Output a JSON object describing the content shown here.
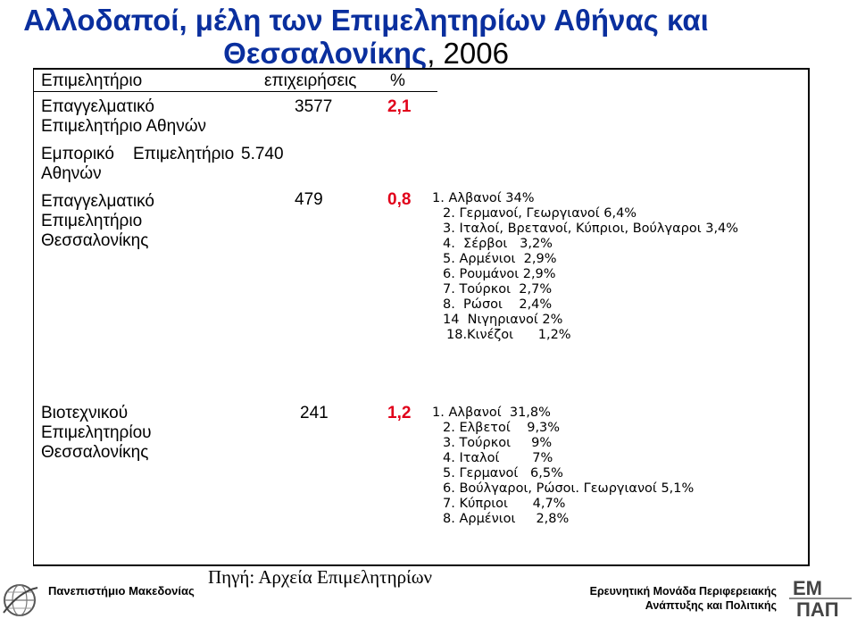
{
  "title": {
    "main": "Αλλοδαποί, μέλη των Επιμελητηρίων Αθήνας και Θεσσαλονίκης",
    "sep": ", ",
    "year": "2006"
  },
  "table": {
    "headers": [
      "Επιμελητήριο",
      "επιχειρήσεις",
      "%"
    ],
    "rows": [
      {
        "name_lines": [
          "Επαγγελματικό",
          "Επιμελητήριο Αθηνών"
        ],
        "count": "3577",
        "pct": "2,1",
        "notes": []
      },
      {
        "name_lines": [
          "Εμπορικό    Επιμελητήριο",
          "Αθηνών"
        ],
        "count": "5.740",
        "pct": "",
        "notes": []
      },
      {
        "name_lines": [
          "Επαγγελματικό",
          "Επιμελητήριο",
          "Θεσσαλονίκης"
        ],
        "count": "479",
        "pct": "0,8",
        "notes": [
          "1. Αλβανοί 34%",
          "2. Γερμανοί, Γεωργιανοί 6,4%",
          "3. Ιταλοί, Βρετανοί, Κύπριοι, Βούλγαροι 3,4%",
          "4.  Σέρβοι   3,2%",
          "5. Αρμένιοι  2,9%",
          "6. Ρουμάνοι 2,9%",
          "7. Τούρκοι  2,7%",
          "8.  Ρώσοι    2,4%",
          "14  Νιγηριανοί 2%",
          "18.Κινέζοι      1,2%"
        ]
      },
      {
        "name_lines": [
          "Βιοτεχνικού",
          "Επιμελητηρίου",
          "Θεσσαλονίκης"
        ],
        "count": "241",
        "pct": "1,2",
        "notes": [
          "1. Αλβανοί  31,8%",
          "2. Ελβετοί    9,3%",
          "3. Τούρκοι     9%",
          "4. Ιταλοί        7%",
          "5. Γερμανοί   6,5%",
          "6. Βούλγαροι, Ρώσοι. Γεωργιανοί 5,1%",
          "7. Κύπριοι      4,7%",
          "8. Αρμένιοι     2,8%"
        ]
      }
    ]
  },
  "source": "Πηγή: Αρχεία Επιμελητηρίων",
  "footer": {
    "left": "Πανεπιστήμιο Μακεδονίας",
    "right_line1": "Ερευνητική Μονάδα Περιφερειακής",
    "right_line2": "Ανάπτυξης και Πολιτικής",
    "logo_right_text": "ΕΜ ΠΑΠ"
  },
  "colors": {
    "title": "#0a2f9e",
    "pct": "#e1001a"
  }
}
